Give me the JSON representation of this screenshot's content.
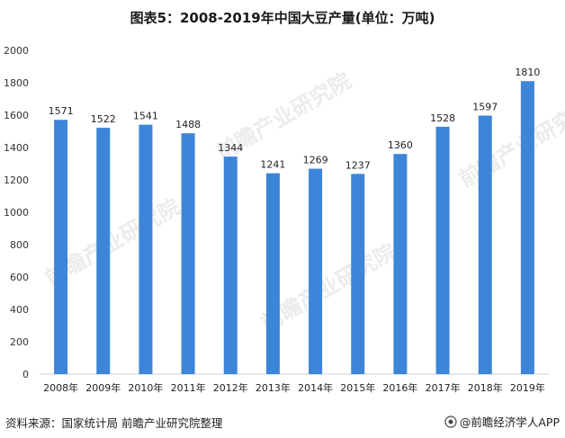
{
  "title": "图表5：2008-2019年中国大豆产量(单位：万吨)",
  "source": "资料来源：国家统计局 前瞻产业研究院整理",
  "brand": "@前瞻经济学人APP",
  "watermark": "前瞻产业研究院",
  "colors": {
    "bar": "#3d85d8",
    "axis": "#d0d0d0"
  },
  "chart_data": {
    "type": "bar",
    "title": "图表5：2008-2019年中国大豆产量(单位：万吨)",
    "categories": [
      "2008年",
      "2009年",
      "2010年",
      "2011年",
      "2012年",
      "2013年",
      "2014年",
      "2015年",
      "2016年",
      "2017年",
      "2018年",
      "2019年"
    ],
    "values": [
      1571,
      1522,
      1541,
      1488,
      1344,
      1241,
      1269,
      1237,
      1360,
      1528,
      1597,
      1810
    ],
    "ylim": [
      0,
      2000
    ],
    "yticks": [
      0,
      200,
      400,
      600,
      800,
      1000,
      1200,
      1400,
      1600,
      1800,
      2000
    ],
    "grid": false,
    "legend": "none"
  }
}
